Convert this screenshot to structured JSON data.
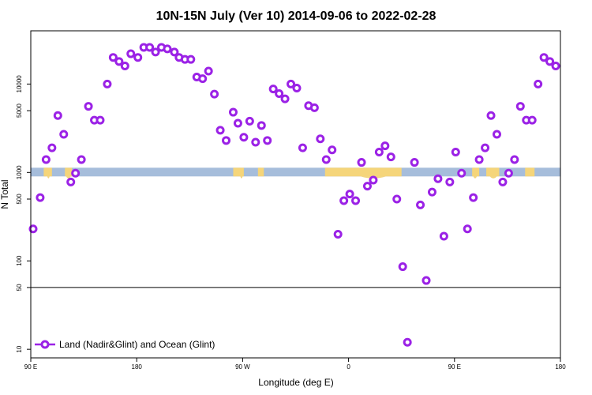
{
  "chart_data": {
    "type": "scatter",
    "title": "10N-15N July (Ver 10)   2014-09-06 to 2022-02-28",
    "xlabel": "Longitude (deg E)",
    "ylabel": "N Total",
    "x_ticks": [
      {
        "value": 90,
        "label": "90 E"
      },
      {
        "value": 180,
        "label": "180"
      },
      {
        "value": 270,
        "label": "90 W"
      },
      {
        "value": 360,
        "label": "0"
      },
      {
        "value": 450,
        "label": "90 E"
      },
      {
        "value": 540,
        "label": "180"
      }
    ],
    "y_ticks": [
      10,
      50,
      100,
      500,
      1000,
      5000,
      10000
    ],
    "xlim": [
      90,
      540
    ],
    "ylim": [
      8,
      40000
    ],
    "y_scale": "log",
    "reference_line": 50,
    "legend": {
      "position": "bottom-left",
      "label": "Land (Nadir&Glint) and Ocean (Glint)"
    },
    "colors": {
      "points": "#9b22e6",
      "ocean_band": "#a6bddb",
      "land_band": "#f5d57a"
    },
    "series": [
      {
        "name": "Land (Nadir&Glint) and Ocean (Glint)",
        "x": [
          92,
          98,
          103,
          108,
          113,
          118,
          124,
          128,
          133,
          139,
          144,
          149,
          155,
          160,
          165,
          170,
          175,
          181,
          186,
          191,
          196,
          201,
          206,
          212,
          216,
          221,
          226,
          231,
          236,
          241,
          246,
          251,
          256,
          262,
          266,
          271,
          276,
          281,
          286,
          291,
          296,
          301,
          306,
          311,
          316,
          321,
          326,
          331,
          336,
          341,
          346,
          351,
          356,
          361,
          366,
          371,
          376,
          381,
          386,
          391,
          396,
          401,
          406,
          410,
          416,
          421,
          426,
          431,
          436,
          441,
          446,
          451,
          456,
          461,
          466,
          471,
          476,
          481,
          486,
          491,
          496,
          501,
          506,
          511,
          516,
          521,
          526,
          531,
          536,
          541
        ],
        "y": [
          230,
          520,
          1400,
          1900,
          4400,
          2700,
          780,
          980,
          1400,
          5600,
          3900,
          3900,
          10000,
          20000,
          18000,
          16000,
          22000,
          20000,
          26000,
          26000,
          23000,
          26000,
          25000,
          23000,
          20000,
          19000,
          19000,
          12000,
          11500,
          14000,
          7700,
          3000,
          2300,
          4800,
          3600,
          2500,
          3800,
          2200,
          3400,
          2300,
          8800,
          7800,
          6800,
          10000,
          9000,
          1900,
          5700,
          5400,
          2400,
          1400,
          1800,
          200,
          480,
          570,
          480,
          1300,
          700,
          820,
          1700,
          2000,
          1500,
          500,
          86,
          12,
          1300,
          430,
          60,
          600,
          850,
          190,
          780,
          1700,
          980,
          230,
          520,
          1400,
          1900,
          4400,
          2700,
          780,
          980,
          1400,
          5600,
          3900,
          3900,
          10000,
          20000,
          18000,
          16000,
          22000
        ]
      }
    ]
  }
}
